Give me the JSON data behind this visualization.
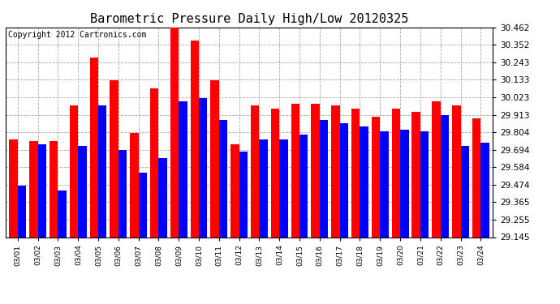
{
  "title": "Barometric Pressure Daily High/Low 20120325",
  "copyright": "Copyright 2012 Cartronics.com",
  "dates": [
    "03/01",
    "03/02",
    "03/03",
    "03/04",
    "03/05",
    "03/06",
    "03/07",
    "03/08",
    "03/09",
    "03/10",
    "03/11",
    "03/12",
    "03/13",
    "03/14",
    "03/15",
    "03/16",
    "03/17",
    "03/18",
    "03/19",
    "03/20",
    "03/21",
    "03/22",
    "03/23",
    "03/24"
  ],
  "highs": [
    29.76,
    29.75,
    29.75,
    29.97,
    30.27,
    30.13,
    29.8,
    30.08,
    30.46,
    30.38,
    30.13,
    29.73,
    29.97,
    29.95,
    29.98,
    29.98,
    29.97,
    29.95,
    29.9,
    29.95,
    29.93,
    30.0,
    29.97,
    29.89
  ],
  "lows": [
    29.47,
    29.73,
    29.44,
    29.72,
    29.97,
    29.69,
    29.55,
    29.64,
    30.0,
    30.02,
    29.88,
    29.68,
    29.76,
    29.76,
    29.79,
    29.88,
    29.86,
    29.84,
    29.81,
    29.82,
    29.81,
    29.91,
    29.72,
    29.74
  ],
  "high_color": "#ff0000",
  "low_color": "#0000ff",
  "bg_color": "#ffffff",
  "grid_color": "#aaaaaa",
  "yticks": [
    29.145,
    29.255,
    29.365,
    29.474,
    29.584,
    29.694,
    29.804,
    29.913,
    30.023,
    30.133,
    30.243,
    30.352,
    30.462
  ],
  "ylim": [
    29.145,
    30.462
  ],
  "bar_width": 0.42,
  "title_fontsize": 11,
  "copyright_fontsize": 7,
  "tick_fontsize": 7.5,
  "xtick_fontsize": 6.5
}
